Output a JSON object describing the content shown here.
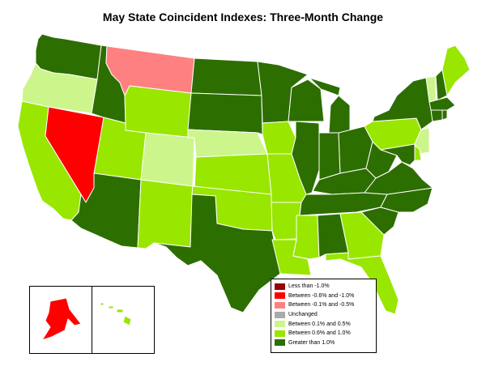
{
  "title": "May State Coincident Indexes: Three-Month Change",
  "colors": {
    "lt_neg1": "#990000",
    "neg06_neg1": "#ff0000",
    "neg01_neg05": "#ff8080",
    "unchanged": "#aaaaaa",
    "p01_05": "#ccf58c",
    "p06_10": "#99e600",
    "gt1": "#2d6e00"
  },
  "legend": [
    {
      "label": "Less than -1.0%",
      "color": "#990000"
    },
    {
      "label": "Between -0.6% and -1.0%",
      "color": "#ff0000"
    },
    {
      "label": "Between -0.1% and -0.5%",
      "color": "#ff8080"
    },
    {
      "label": "Unchanged",
      "color": "#aaaaaa"
    },
    {
      "label": "Between 0.1% and 0.5%",
      "color": "#ccf58c"
    },
    {
      "label": "Between 0.6% and 1.0%",
      "color": "#99e600"
    },
    {
      "label": "Greater than 1.0%",
      "color": "#2d6e00"
    }
  ],
  "states": {
    "WA": "gt1",
    "OR": "p01_05",
    "CA": "p06_10",
    "NV": "neg06_neg1",
    "ID": "gt1",
    "MT": "neg01_neg05",
    "WY": "p06_10",
    "UT": "p06_10",
    "AZ": "gt1",
    "CO": "p01_05",
    "NM": "p06_10",
    "ND": "gt1",
    "SD": "gt1",
    "NE": "p01_05",
    "KS": "p06_10",
    "OK": "p06_10",
    "TX": "gt1",
    "MN": "gt1",
    "IA": "p06_10",
    "MO": "p06_10",
    "AR": "p06_10",
    "LA": "p06_10",
    "WI": "gt1",
    "IL": "gt1",
    "MI": "gt1",
    "IN": "gt1",
    "OH": "gt1",
    "KY": "gt1",
    "TN": "gt1",
    "MS": "p06_10",
    "AL": "gt1",
    "GA": "p06_10",
    "FL": "p06_10",
    "SC": "gt1",
    "NC": "gt1",
    "VA": "gt1",
    "WV": "gt1",
    "PA": "p06_10",
    "NY": "gt1",
    "VT": "p01_05",
    "NH": "gt1",
    "ME": "p06_10",
    "MA": "gt1",
    "CT": "gt1",
    "RI": "gt1",
    "NJ": "p01_05",
    "DE": "p06_10",
    "MD": "gt1",
    "AK": "neg06_neg1",
    "HI": "p06_10"
  }
}
